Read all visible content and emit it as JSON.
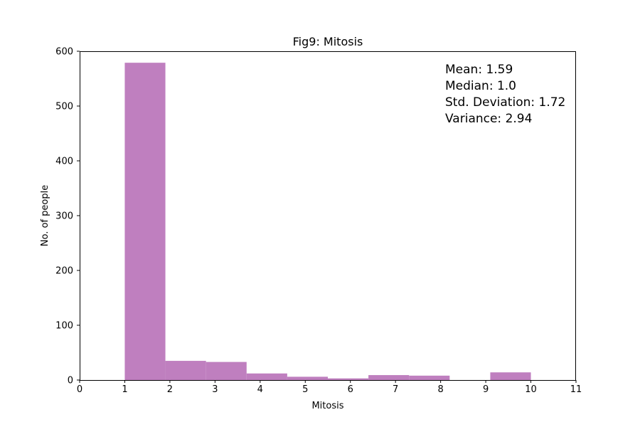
{
  "chart_data": {
    "type": "bar",
    "title": "Fig9: Mitosis",
    "xlabel": "Mitosis",
    "ylabel": "No. of people",
    "xlim": [
      0,
      11
    ],
    "ylim": [
      0,
      600
    ],
    "xticks": [
      "0",
      "1",
      "2",
      "3",
      "4",
      "5",
      "6",
      "7",
      "8",
      "9",
      "10",
      "11"
    ],
    "yticks": [
      "0",
      "100",
      "200",
      "300",
      "400",
      "500",
      "600"
    ],
    "bin_width": 0.9,
    "bins": [
      {
        "x": 1.0,
        "value": 579
      },
      {
        "x": 1.9,
        "value": 35
      },
      {
        "x": 2.8,
        "value": 33
      },
      {
        "x": 3.7,
        "value": 12
      },
      {
        "x": 4.6,
        "value": 6
      },
      {
        "x": 5.5,
        "value": 3
      },
      {
        "x": 6.4,
        "value": 9
      },
      {
        "x": 7.3,
        "value": 8
      },
      {
        "x": 8.2,
        "value": 0
      },
      {
        "x": 9.1,
        "value": 14
      }
    ],
    "bar_color": "#bf7fbf",
    "grid": false,
    "annotations": [
      "Mean: 1.59",
      "Median: 1.0",
      "Std. Deviation: 1.72",
      "Variance: 2.94"
    ]
  }
}
